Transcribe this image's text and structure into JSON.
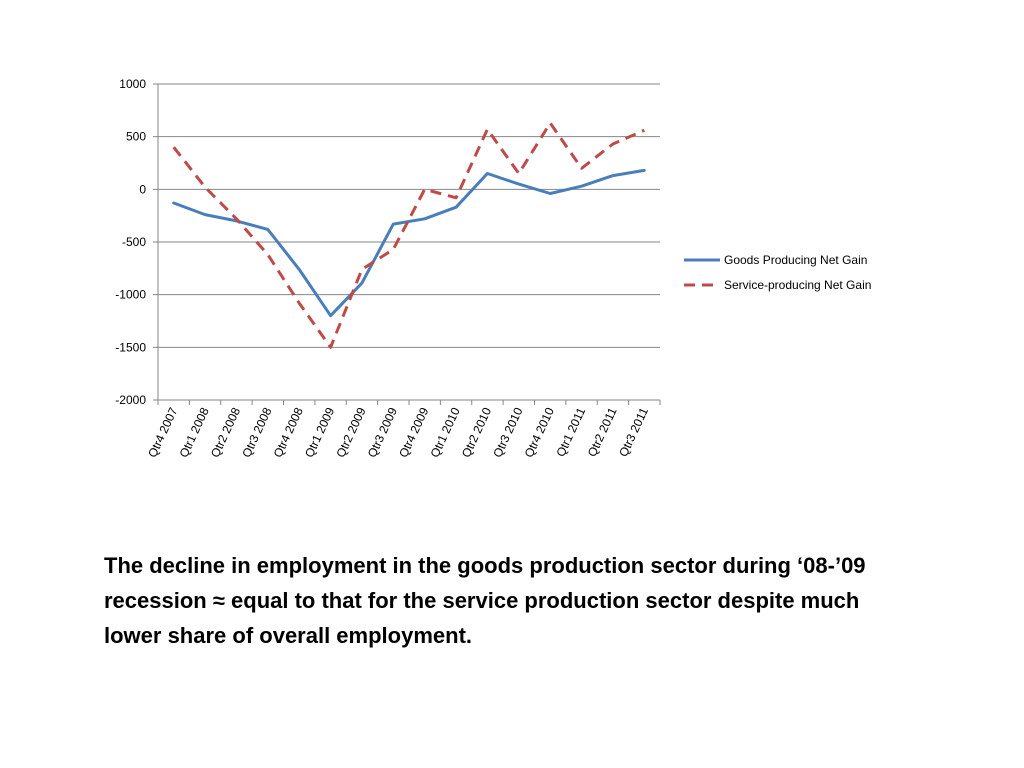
{
  "chart_data": {
    "type": "line",
    "categories": [
      "Qtr4 2007",
      "Qtr1 2008",
      "Qtr2 2008",
      "Qtr3 2008",
      "Qtr4 2008",
      "Qtr1 2009",
      "Qtr2 2009",
      "Qtr3 2009",
      "Qtr4 2009",
      "Qtr1 2010",
      "Qtr2 2010",
      "Qtr3 2010",
      "Qtr4 2010",
      "Qtr1 2011",
      "Qtr2 2011",
      "Qtr3 2011"
    ],
    "series": [
      {
        "name": "Goods Producing Net Gain",
        "color": "#4a7ebb",
        "dash": "solid",
        "values": [
          -130,
          -240,
          -300,
          -380,
          -760,
          -1200,
          -890,
          -330,
          -280,
          -170,
          150,
          50,
          -40,
          30,
          130,
          180
        ]
      },
      {
        "name": "Service-producing Net Gain",
        "color": "#be4b48",
        "dash": "dashed",
        "values": [
          400,
          20,
          -280,
          -620,
          -1080,
          -1500,
          -760,
          -570,
          0,
          -80,
          570,
          150,
          630,
          200,
          430,
          560
        ]
      }
    ],
    "yticks": [
      1000,
      500,
      0,
      -500,
      -1000,
      -1500,
      -2000
    ],
    "ylim": [
      -2000,
      1000
    ],
    "grid": true,
    "legend_position": "right"
  },
  "caption": "The decline in employment in the goods production sector during ‘08-’09 recession ≈ equal to that for the service production sector despite much lower share of overall employment."
}
